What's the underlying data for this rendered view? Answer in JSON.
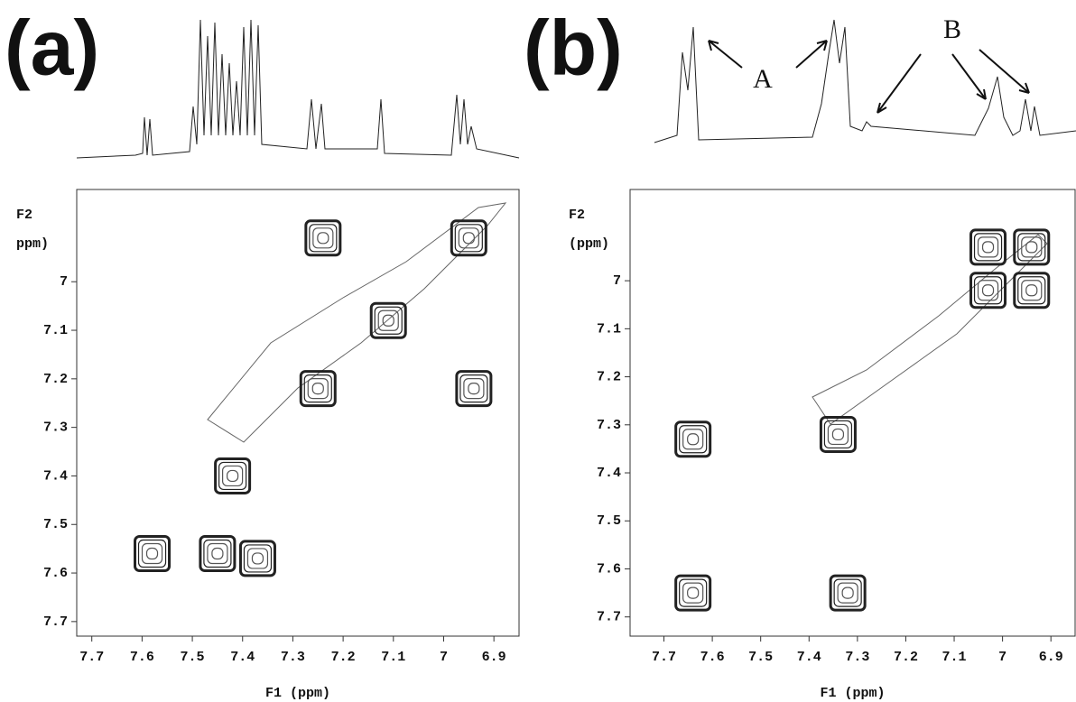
{
  "chart_data": [
    {
      "type": "cosy",
      "panel": "(a)",
      "xlabel": "F1 (ppm)",
      "ylabel": [
        "F2",
        "ppm)"
      ],
      "xlim": [
        7.73,
        6.85
      ],
      "xticks": [
        7.7,
        7.6,
        7.5,
        7.4,
        7.3,
        7.2,
        7.1,
        7.0,
        6.9
      ],
      "ylim": [
        6.81,
        7.73
      ],
      "yticks": [
        7.0,
        7.1,
        7.2,
        7.3,
        7.4,
        7.5,
        7.6,
        7.7
      ],
      "peaks": {
        "x": [
          7.24,
          6.95,
          7.11,
          6.94,
          7.25,
          7.42,
          7.58,
          7.45,
          7.37
        ],
        "y": [
          6.91,
          6.91,
          7.08,
          7.22,
          7.22,
          7.4,
          7.56,
          7.56,
          7.57
        ]
      }
    },
    {
      "type": "cosy",
      "panel": "(b)",
      "xlabel": "F1 (ppm)",
      "ylabel": [
        "F2",
        "(ppm)"
      ],
      "xlim": [
        7.77,
        6.85
      ],
      "xticks": [
        7.7,
        7.6,
        7.5,
        7.4,
        7.3,
        7.2,
        7.1,
        7.0,
        6.9
      ],
      "ylim": [
        6.81,
        7.74
      ],
      "yticks": [
        7.0,
        7.1,
        7.2,
        7.3,
        7.4,
        7.5,
        7.6,
        7.7
      ],
      "annotations": [
        "A",
        "B"
      ],
      "peaks": {
        "x": [
          7.64,
          7.64,
          7.32,
          7.34,
          7.03,
          6.94,
          7.03,
          6.94
        ],
        "y": [
          7.33,
          7.65,
          7.65,
          7.32,
          6.93,
          6.93,
          7.02,
          7.02
        ]
      }
    }
  ]
}
